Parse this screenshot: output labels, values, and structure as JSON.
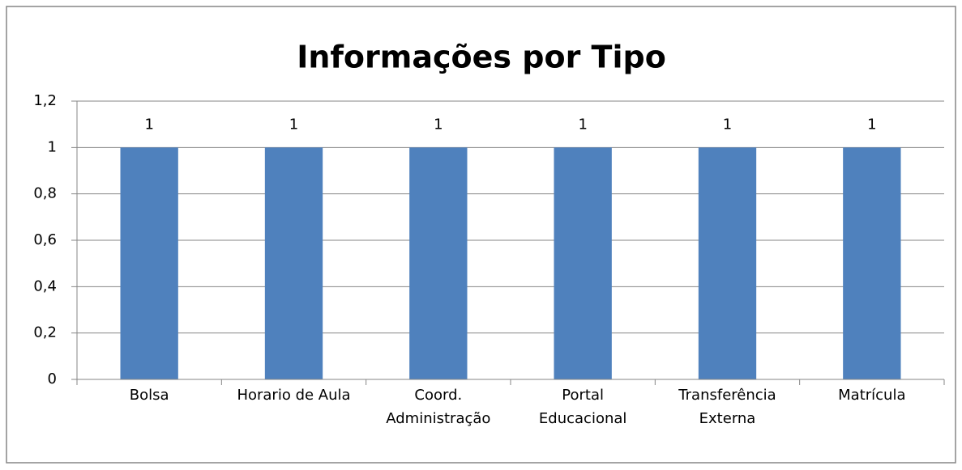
{
  "chart_data": {
    "type": "bar",
    "title": "Informações  por Tipo",
    "categories": [
      "Bolsa",
      "Horario de Aula",
      "Coord.\nAdministração",
      "Portal\nEducacional",
      "Transferência\nExterna",
      "Matrícula"
    ],
    "values": [
      1,
      1,
      1,
      1,
      1,
      1
    ],
    "color": "#4f81bd",
    "ylim": [
      0,
      1.2
    ],
    "yticks": [
      0,
      {
        "value": 0.2,
        "label": "0,2"
      },
      {
        "value": 0.4,
        "label": "0,4"
      },
      {
        "value": 0.6,
        "label": "0,6"
      },
      {
        "value": 0.8,
        "label": "0,8"
      },
      1,
      {
        "value": 1.2,
        "label": "1,2"
      }
    ],
    "grid": true
  }
}
